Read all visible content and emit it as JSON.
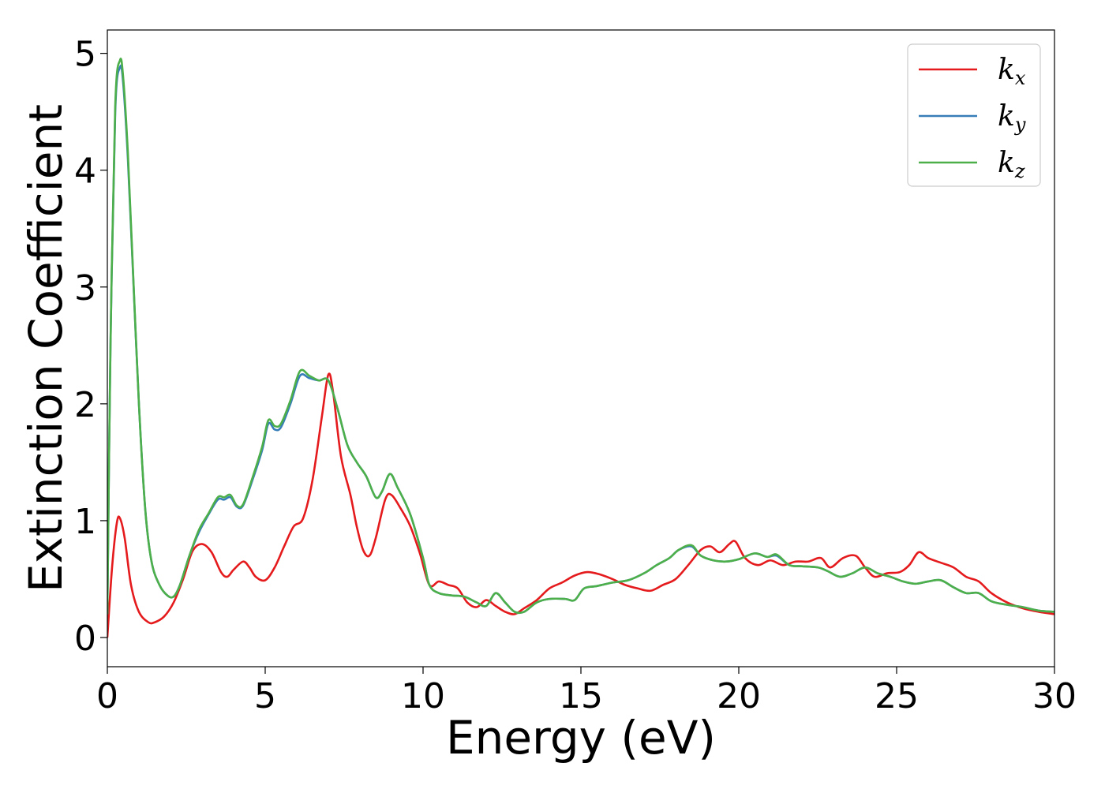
{
  "chart_data": {
    "type": "line",
    "xlabel": "Energy (eV)",
    "ylabel": "Extinction Coefficient",
    "xlim": [
      0,
      30
    ],
    "ylim": [
      -0.25,
      5.2
    ],
    "xticks": [
      0,
      5,
      10,
      15,
      20,
      25,
      30
    ],
    "yticks": [
      0,
      1,
      2,
      3,
      4,
      5
    ],
    "grid": false,
    "legend_position": "top-right",
    "series": [
      {
        "name": "k_x",
        "label_main": "k",
        "label_sub": "x",
        "color": "#e41a1c",
        "points": [
          [
            0,
            0
          ],
          [
            0.15,
            0.6
          ],
          [
            0.3,
            0.98
          ],
          [
            0.4,
            1.02
          ],
          [
            0.55,
            0.85
          ],
          [
            0.75,
            0.45
          ],
          [
            1.0,
            0.22
          ],
          [
            1.3,
            0.13
          ],
          [
            1.5,
            0.13
          ],
          [
            1.8,
            0.18
          ],
          [
            2.1,
            0.3
          ],
          [
            2.4,
            0.5
          ],
          [
            2.7,
            0.74
          ],
          [
            3.0,
            0.8
          ],
          [
            3.3,
            0.73
          ],
          [
            3.6,
            0.56
          ],
          [
            3.8,
            0.52
          ],
          [
            4.0,
            0.58
          ],
          [
            4.3,
            0.65
          ],
          [
            4.5,
            0.6
          ],
          [
            4.7,
            0.52
          ],
          [
            5.0,
            0.49
          ],
          [
            5.3,
            0.6
          ],
          [
            5.6,
            0.78
          ],
          [
            5.9,
            0.95
          ],
          [
            6.2,
            1.02
          ],
          [
            6.5,
            1.35
          ],
          [
            6.8,
            1.9
          ],
          [
            7.0,
            2.25
          ],
          [
            7.15,
            2.1
          ],
          [
            7.4,
            1.55
          ],
          [
            7.7,
            1.22
          ],
          [
            7.9,
            0.95
          ],
          [
            8.1,
            0.75
          ],
          [
            8.3,
            0.7
          ],
          [
            8.5,
            0.85
          ],
          [
            8.8,
            1.18
          ],
          [
            9.0,
            1.22
          ],
          [
            9.3,
            1.1
          ],
          [
            9.6,
            0.95
          ],
          [
            9.9,
            0.72
          ],
          [
            10.2,
            0.45
          ],
          [
            10.5,
            0.48
          ],
          [
            10.8,
            0.45
          ],
          [
            11.1,
            0.42
          ],
          [
            11.4,
            0.3
          ],
          [
            11.7,
            0.26
          ],
          [
            12.0,
            0.32
          ],
          [
            12.3,
            0.27
          ],
          [
            12.6,
            0.22
          ],
          [
            12.9,
            0.2
          ],
          [
            13.2,
            0.25
          ],
          [
            13.6,
            0.32
          ],
          [
            14.0,
            0.42
          ],
          [
            14.4,
            0.47
          ],
          [
            14.8,
            0.53
          ],
          [
            15.2,
            0.56
          ],
          [
            15.6,
            0.54
          ],
          [
            16.0,
            0.5
          ],
          [
            16.4,
            0.45
          ],
          [
            16.8,
            0.42
          ],
          [
            17.2,
            0.4
          ],
          [
            17.6,
            0.45
          ],
          [
            18.0,
            0.5
          ],
          [
            18.4,
            0.62
          ],
          [
            18.8,
            0.75
          ],
          [
            19.1,
            0.78
          ],
          [
            19.4,
            0.73
          ],
          [
            19.7,
            0.8
          ],
          [
            19.9,
            0.82
          ],
          [
            20.2,
            0.68
          ],
          [
            20.6,
            0.62
          ],
          [
            21.0,
            0.66
          ],
          [
            21.4,
            0.62
          ],
          [
            21.8,
            0.65
          ],
          [
            22.2,
            0.65
          ],
          [
            22.6,
            0.68
          ],
          [
            22.9,
            0.6
          ],
          [
            23.3,
            0.68
          ],
          [
            23.7,
            0.7
          ],
          [
            24.0,
            0.6
          ],
          [
            24.3,
            0.52
          ],
          [
            24.7,
            0.55
          ],
          [
            25.1,
            0.56
          ],
          [
            25.4,
            0.62
          ],
          [
            25.7,
            0.73
          ],
          [
            26.0,
            0.68
          ],
          [
            26.4,
            0.64
          ],
          [
            26.8,
            0.6
          ],
          [
            27.2,
            0.52
          ],
          [
            27.6,
            0.48
          ],
          [
            28.0,
            0.38
          ],
          [
            28.5,
            0.3
          ],
          [
            29.0,
            0.25
          ],
          [
            29.5,
            0.22
          ],
          [
            30.0,
            0.2
          ]
        ]
      },
      {
        "name": "k_y",
        "label_main": "k",
        "label_sub": "y",
        "color": "#377eb8",
        "points": [
          [
            0,
            0.2
          ],
          [
            0.1,
            2.5
          ],
          [
            0.25,
            4.5
          ],
          [
            0.4,
            4.88
          ],
          [
            0.5,
            4.75
          ],
          [
            0.65,
            4.1
          ],
          [
            0.8,
            3.2
          ],
          [
            1.0,
            2.0
          ],
          [
            1.2,
            1.1
          ],
          [
            1.4,
            0.65
          ],
          [
            1.65,
            0.45
          ],
          [
            1.9,
            0.36
          ],
          [
            2.1,
            0.35
          ],
          [
            2.3,
            0.45
          ],
          [
            2.6,
            0.7
          ],
          [
            2.9,
            0.9
          ],
          [
            3.2,
            1.05
          ],
          [
            3.5,
            1.18
          ],
          [
            3.7,
            1.18
          ],
          [
            3.9,
            1.2
          ],
          [
            4.1,
            1.12
          ],
          [
            4.3,
            1.13
          ],
          [
            4.6,
            1.35
          ],
          [
            4.9,
            1.6
          ],
          [
            5.1,
            1.83
          ],
          [
            5.3,
            1.78
          ],
          [
            5.5,
            1.8
          ],
          [
            5.8,
            2.0
          ],
          [
            6.1,
            2.24
          ],
          [
            6.4,
            2.22
          ],
          [
            6.7,
            2.2
          ],
          [
            7.0,
            2.2
          ],
          [
            7.3,
            1.95
          ],
          [
            7.6,
            1.65
          ],
          [
            7.9,
            1.5
          ],
          [
            8.2,
            1.38
          ],
          [
            8.5,
            1.2
          ],
          [
            8.7,
            1.25
          ],
          [
            8.95,
            1.4
          ],
          [
            9.2,
            1.28
          ],
          [
            9.6,
            1.05
          ],
          [
            10.0,
            0.68
          ],
          [
            10.2,
            0.45
          ],
          [
            10.5,
            0.38
          ],
          [
            10.9,
            0.36
          ],
          [
            11.3,
            0.35
          ],
          [
            11.7,
            0.3
          ],
          [
            12.0,
            0.27
          ],
          [
            12.3,
            0.38
          ],
          [
            12.6,
            0.3
          ],
          [
            12.9,
            0.22
          ],
          [
            13.2,
            0.22
          ],
          [
            13.6,
            0.3
          ],
          [
            14.0,
            0.33
          ],
          [
            14.5,
            0.33
          ],
          [
            14.8,
            0.32
          ],
          [
            15.1,
            0.42
          ],
          [
            15.5,
            0.44
          ],
          [
            16.0,
            0.47
          ],
          [
            16.5,
            0.49
          ],
          [
            17.0,
            0.55
          ],
          [
            17.4,
            0.62
          ],
          [
            17.8,
            0.68
          ],
          [
            18.1,
            0.75
          ],
          [
            18.5,
            0.78
          ],
          [
            18.8,
            0.7
          ],
          [
            19.2,
            0.66
          ],
          [
            19.6,
            0.65
          ],
          [
            20.0,
            0.67
          ],
          [
            20.5,
            0.72
          ],
          [
            20.9,
            0.69
          ],
          [
            21.2,
            0.7
          ],
          [
            21.6,
            0.62
          ],
          [
            22.0,
            0.61
          ],
          [
            22.5,
            0.6
          ],
          [
            22.8,
            0.57
          ],
          [
            23.2,
            0.52
          ],
          [
            23.6,
            0.55
          ],
          [
            24.0,
            0.6
          ],
          [
            24.4,
            0.55
          ],
          [
            24.8,
            0.52
          ],
          [
            25.2,
            0.48
          ],
          [
            25.6,
            0.46
          ],
          [
            26.0,
            0.48
          ],
          [
            26.4,
            0.49
          ],
          [
            26.8,
            0.43
          ],
          [
            27.2,
            0.38
          ],
          [
            27.6,
            0.38
          ],
          [
            28.0,
            0.31
          ],
          [
            28.5,
            0.28
          ],
          [
            29.0,
            0.26
          ],
          [
            29.5,
            0.23
          ],
          [
            30.0,
            0.22
          ]
        ]
      },
      {
        "name": "k_z",
        "label_main": "k",
        "label_sub": "z",
        "color": "#4daf4a",
        "points": [
          [
            0,
            0.2
          ],
          [
            0.1,
            2.5
          ],
          [
            0.25,
            4.55
          ],
          [
            0.4,
            4.94
          ],
          [
            0.5,
            4.8
          ],
          [
            0.65,
            4.15
          ],
          [
            0.8,
            3.22
          ],
          [
            1.0,
            2.0
          ],
          [
            1.2,
            1.1
          ],
          [
            1.4,
            0.65
          ],
          [
            1.65,
            0.45
          ],
          [
            1.9,
            0.36
          ],
          [
            2.1,
            0.35
          ],
          [
            2.3,
            0.45
          ],
          [
            2.6,
            0.7
          ],
          [
            2.9,
            0.92
          ],
          [
            3.2,
            1.06
          ],
          [
            3.5,
            1.2
          ],
          [
            3.7,
            1.2
          ],
          [
            3.9,
            1.22
          ],
          [
            4.1,
            1.13
          ],
          [
            4.3,
            1.14
          ],
          [
            4.6,
            1.37
          ],
          [
            4.9,
            1.63
          ],
          [
            5.1,
            1.86
          ],
          [
            5.3,
            1.81
          ],
          [
            5.5,
            1.83
          ],
          [
            5.8,
            2.03
          ],
          [
            6.1,
            2.28
          ],
          [
            6.4,
            2.24
          ],
          [
            6.7,
            2.2
          ],
          [
            7.0,
            2.2
          ],
          [
            7.3,
            1.95
          ],
          [
            7.6,
            1.65
          ],
          [
            7.9,
            1.5
          ],
          [
            8.2,
            1.38
          ],
          [
            8.5,
            1.2
          ],
          [
            8.7,
            1.25
          ],
          [
            8.95,
            1.4
          ],
          [
            9.2,
            1.28
          ],
          [
            9.6,
            1.05
          ],
          [
            10.0,
            0.68
          ],
          [
            10.2,
            0.45
          ],
          [
            10.5,
            0.38
          ],
          [
            10.9,
            0.36
          ],
          [
            11.3,
            0.35
          ],
          [
            11.7,
            0.3
          ],
          [
            12.0,
            0.27
          ],
          [
            12.3,
            0.38
          ],
          [
            12.6,
            0.3
          ],
          [
            12.9,
            0.22
          ],
          [
            13.2,
            0.22
          ],
          [
            13.6,
            0.3
          ],
          [
            14.0,
            0.33
          ],
          [
            14.5,
            0.33
          ],
          [
            14.8,
            0.32
          ],
          [
            15.1,
            0.42
          ],
          [
            15.5,
            0.44
          ],
          [
            16.0,
            0.47
          ],
          [
            16.5,
            0.49
          ],
          [
            17.0,
            0.55
          ],
          [
            17.4,
            0.62
          ],
          [
            17.8,
            0.68
          ],
          [
            18.1,
            0.75
          ],
          [
            18.5,
            0.79
          ],
          [
            18.8,
            0.7
          ],
          [
            19.2,
            0.66
          ],
          [
            19.6,
            0.65
          ],
          [
            20.0,
            0.67
          ],
          [
            20.5,
            0.72
          ],
          [
            20.9,
            0.69
          ],
          [
            21.2,
            0.71
          ],
          [
            21.6,
            0.62
          ],
          [
            22.0,
            0.61
          ],
          [
            22.5,
            0.6
          ],
          [
            22.8,
            0.57
          ],
          [
            23.2,
            0.52
          ],
          [
            23.6,
            0.55
          ],
          [
            24.0,
            0.6
          ],
          [
            24.4,
            0.55
          ],
          [
            24.8,
            0.52
          ],
          [
            25.2,
            0.48
          ],
          [
            25.6,
            0.46
          ],
          [
            26.0,
            0.48
          ],
          [
            26.4,
            0.49
          ],
          [
            26.8,
            0.43
          ],
          [
            27.2,
            0.38
          ],
          [
            27.6,
            0.38
          ],
          [
            28.0,
            0.31
          ],
          [
            28.5,
            0.28
          ],
          [
            29.0,
            0.26
          ],
          [
            29.5,
            0.23
          ],
          [
            30.0,
            0.22
          ]
        ]
      }
    ]
  }
}
